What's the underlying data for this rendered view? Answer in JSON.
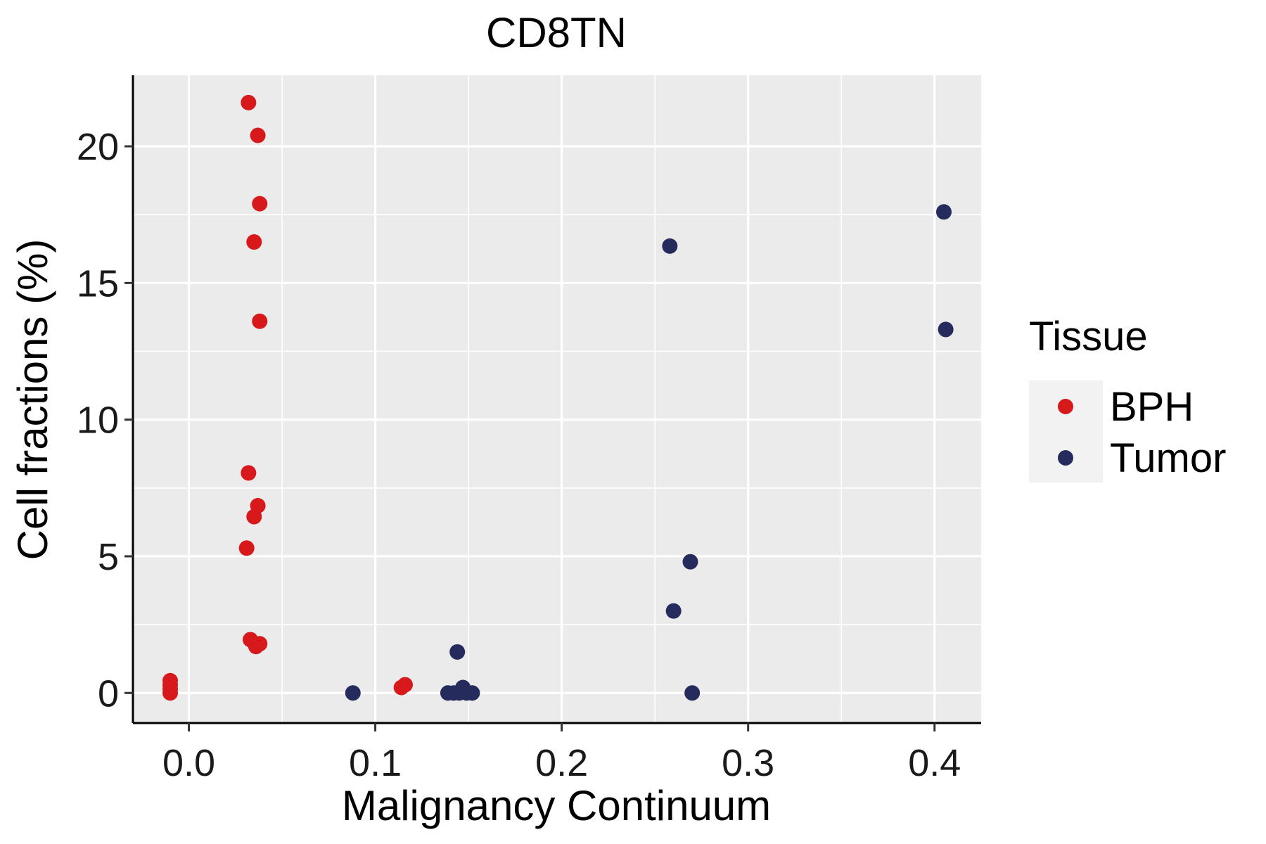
{
  "chart_data": {
    "type": "scatter",
    "title": "CD8TN",
    "xlabel": "Malignancy Continuum",
    "ylabel": "Cell fractions (%)",
    "xlim": [
      -0.03,
      0.425
    ],
    "ylim": [
      -1.1,
      22.6
    ],
    "x_ticks": [
      0.0,
      0.1,
      0.2,
      0.3,
      0.4
    ],
    "x_tick_labels": [
      "0.0",
      "0.1",
      "0.2",
      "0.3",
      "0.4"
    ],
    "y_ticks": [
      0,
      5,
      10,
      15,
      20
    ],
    "y_tick_labels": [
      "0",
      "5",
      "10",
      "15",
      "20"
    ],
    "x_minor": [
      0.05,
      0.15,
      0.25,
      0.35
    ],
    "y_minor": [
      2.5,
      7.5,
      12.5,
      17.5
    ],
    "grid": true,
    "panel_background": "#ebebeb",
    "legend": {
      "title": "Tissue",
      "position": "right"
    },
    "series": [
      {
        "name": "BPH",
        "color": "#d7191c",
        "points": [
          [
            -0.01,
            0.45
          ],
          [
            -0.01,
            0.3
          ],
          [
            -0.01,
            0.15
          ],
          [
            -0.01,
            0.0
          ],
          [
            0.032,
            21.6
          ],
          [
            0.037,
            20.4
          ],
          [
            0.038,
            17.9
          ],
          [
            0.035,
            16.5
          ],
          [
            0.038,
            13.6
          ],
          [
            0.032,
            8.05
          ],
          [
            0.037,
            6.85
          ],
          [
            0.035,
            6.45
          ],
          [
            0.031,
            5.3
          ],
          [
            0.033,
            1.95
          ],
          [
            0.038,
            1.8
          ],
          [
            0.036,
            1.7
          ],
          [
            0.114,
            0.2
          ],
          [
            0.116,
            0.3
          ]
        ]
      },
      {
        "name": "Tumor",
        "color": "#262b5e",
        "points": [
          [
            0.088,
            0.0
          ],
          [
            0.139,
            0.0
          ],
          [
            0.142,
            0.0
          ],
          [
            0.145,
            0.0
          ],
          [
            0.147,
            0.2
          ],
          [
            0.149,
            0.0
          ],
          [
            0.152,
            0.0
          ],
          [
            0.144,
            1.5
          ],
          [
            0.258,
            16.35
          ],
          [
            0.26,
            3.0
          ],
          [
            0.269,
            4.8
          ],
          [
            0.27,
            0.0
          ],
          [
            0.405,
            17.6
          ],
          [
            0.406,
            13.3
          ]
        ]
      }
    ]
  }
}
